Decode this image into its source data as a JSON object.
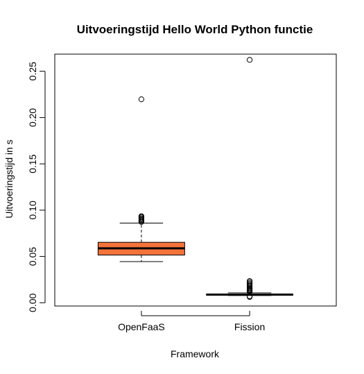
{
  "chart_data": {
    "type": "boxplot",
    "title": "Uitvoeringstijd Hello World Python functie",
    "xlabel": "Framework",
    "ylabel": "Uitvoeringstijd in s",
    "ylim": [
      -0.0035,
      0.2685
    ],
    "yticks": [
      0.0,
      0.05,
      0.1,
      0.15,
      0.2,
      0.25
    ],
    "ytick_labels": [
      "0.00",
      "0.05",
      "0.10",
      "0.15",
      "0.20",
      "0.25"
    ],
    "categories": [
      "OpenFaaS",
      "Fission"
    ],
    "series": [
      {
        "category": "OpenFaaS",
        "color": "#f4733a",
        "whisker_low": 0.0445,
        "q1": 0.0515,
        "median": 0.0588,
        "q3": 0.0653,
        "whisker_high": 0.086,
        "outliers": [
          0.0873,
          0.0883,
          0.0893,
          0.0903,
          0.0913,
          0.0925,
          0.0935,
          0.2197
        ]
      },
      {
        "category": "Fission",
        "color": "#f4733a",
        "whisker_low": 0.0078,
        "q1": 0.0083,
        "median": 0.0088,
        "q3": 0.0093,
        "whisker_high": 0.0107,
        "outliers": [
          0.0063,
          0.007,
          0.0118,
          0.0128,
          0.0138,
          0.0148,
          0.0158,
          0.017,
          0.0183,
          0.0195,
          0.0208,
          0.0222,
          0.0235,
          0.2623
        ]
      }
    ],
    "grid": false,
    "legend": "none"
  }
}
